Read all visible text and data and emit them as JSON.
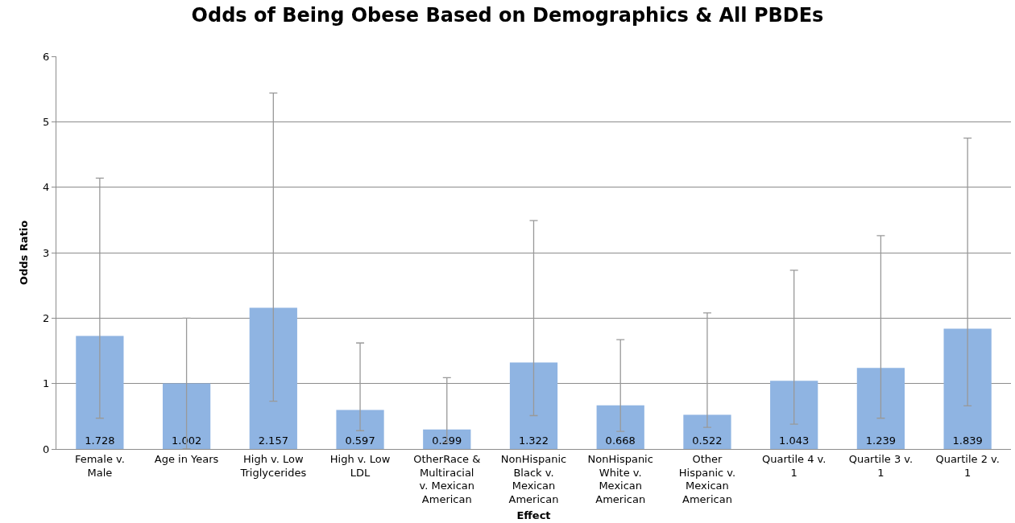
{
  "chart_data": {
    "type": "bar",
    "title": "Odds of Being Obese Based on Demographics & All PBDEs",
    "xlabel": "Effect",
    "ylabel": "Odds Ratio",
    "categories": [
      "Female v. Male",
      "Age in Years",
      "High v. Low Triglycerides",
      "High v. Low LDL",
      "OtherRace & Multiracial v. Mexican American",
      "NonHispanic Black v. Mexican American",
      "NonHispanic White v. Mexican American",
      "Other Hispanic v. Mexican American",
      "Quartile 4 v. 1",
      "Quartile 3 v. 1",
      "Quartile 2 v. 1"
    ],
    "values": [
      1.728,
      1.002,
      2.157,
      0.597,
      0.299,
      1.322,
      0.668,
      0.522,
      1.043,
      1.239,
      1.839
    ],
    "errors": [
      [
        0.47,
        4.14
      ],
      [
        0.0,
        2.0
      ],
      [
        0.73,
        5.44
      ],
      [
        0.28,
        1.62
      ],
      [
        0.1,
        1.09
      ],
      [
        0.51,
        3.49
      ],
      [
        0.27,
        1.67
      ],
      [
        0.33,
        2.08
      ],
      [
        0.38,
        2.73
      ],
      [
        0.47,
        3.26
      ],
      [
        0.66,
        4.75
      ]
    ],
    "color": "#8fb4e2",
    "ylim": [
      0,
      6
    ],
    "yticks": [
      0,
      1,
      2,
      3,
      4,
      5,
      6
    ],
    "grid": "y",
    "data_labels": true,
    "legend": false
  }
}
